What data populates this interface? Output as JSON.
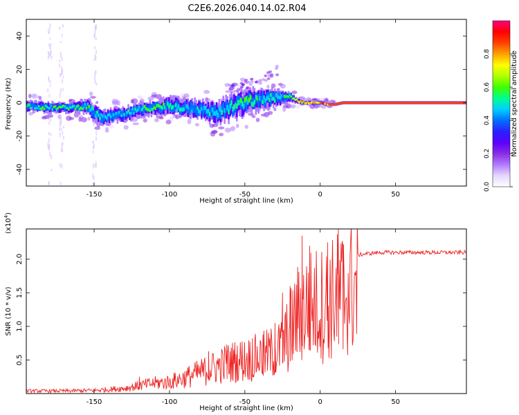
{
  "title": "C2E6.2026.040.14.02.R04",
  "colorbar": {
    "label": "Normalized spectral amplitude",
    "ticks": [
      0.0,
      0.2,
      0.4,
      0.6,
      0.8
    ],
    "tick_labels": [
      "0.0",
      "0.2",
      "0.4",
      "0.6",
      "0.8"
    ],
    "range": [
      0,
      1
    ],
    "stops": [
      "#ffffff",
      "#e6d6ff",
      "#b07cff",
      "#8a2be2",
      "#5a00ff",
      "#2a20ff",
      "#0070ff",
      "#00d0ff",
      "#00ff90",
      "#40ff00",
      "#b0ff00",
      "#ffff00",
      "#ffa000",
      "#ff4000",
      "#ff0000",
      "#ff0080"
    ]
  },
  "chart_data": [
    {
      "type": "heatmap",
      "title": "C2E6.2026.040.14.02.R04",
      "xlabel": "Height of straight line (km)",
      "ylabel": "Frequency (Hz)",
      "xlim": [
        -195,
        97
      ],
      "ylim": [
        -50,
        50
      ],
      "xticks": [
        -150,
        -100,
        -50,
        0,
        50
      ],
      "xtick_labels": [
        "-150",
        "-100",
        "-50",
        "0",
        "50"
      ],
      "yticks": [
        -40,
        -20,
        0,
        20,
        40
      ],
      "ytick_labels": [
        "-40",
        "-20",
        "0",
        "20",
        "40"
      ],
      "ridge": {
        "x": [
          -195,
          -180,
          -165,
          -155,
          -150,
          -145,
          -140,
          -130,
          -120,
          -110,
          -100,
          -90,
          -80,
          -70,
          -60,
          -50,
          -40,
          -30,
          -25,
          -20,
          -15,
          -10,
          -5,
          0,
          5,
          10,
          15,
          20,
          30,
          50,
          70,
          97
        ],
        "freq": [
          -2,
          -3,
          -3,
          -2,
          -6,
          -9,
          -8,
          -7,
          -4,
          -3,
          -2,
          -3,
          -4,
          -6,
          -3,
          0,
          2,
          3,
          3,
          4,
          1,
          0,
          0,
          0,
          -1,
          -1,
          0,
          0,
          0,
          0,
          0,
          0
        ],
        "spread": [
          3,
          3,
          3,
          4,
          5,
          4,
          4,
          4,
          4,
          4,
          5,
          5,
          5,
          6,
          7,
          7,
          6,
          5,
          4,
          3,
          1.5,
          1.2,
          1.2,
          1.2,
          1,
          1,
          1,
          1,
          1,
          1,
          1,
          1
        ],
        "peak_amplitude": [
          0.55,
          0.6,
          0.6,
          0.6,
          0.55,
          0.5,
          0.5,
          0.55,
          0.55,
          0.6,
          0.55,
          0.5,
          0.5,
          0.5,
          0.55,
          0.6,
          0.55,
          0.55,
          0.55,
          0.6,
          0.75,
          0.85,
          0.9,
          0.92,
          0.92,
          0.92,
          0.92,
          0.92,
          0.92,
          0.92,
          0.92,
          0.92
        ]
      },
      "wing_feature": {
        "x": [
          -60,
          -45,
          -35,
          -28
        ],
        "freq": [
          8,
          12,
          16,
          20
        ]
      }
    },
    {
      "type": "line",
      "title": "",
      "xlabel": "Height of straight line (km)",
      "ylabel": "SNR (10 * v/v)",
      "scale_label": "(x10",
      "scale_exp": "4",
      "scale_close": ")",
      "xlim": [
        -195,
        97
      ],
      "ylim": [
        0,
        2.45
      ],
      "xticks": [
        -150,
        -100,
        -50,
        0,
        50
      ],
      "xtick_labels": [
        "-150",
        "-100",
        "-50",
        "0",
        "50"
      ],
      "yticks": [
        0.5,
        1.0,
        1.5,
        2.0
      ],
      "ytick_labels": [
        "0.5",
        "1.0",
        "1.5",
        "2.0"
      ],
      "color": "#ee2222",
      "series": [
        {
          "name": "SNR",
          "x": [
            -195,
            -170,
            -150,
            -130,
            -120,
            -110,
            -100,
            -90,
            -80,
            -70,
            -60,
            -50,
            -40,
            -30,
            -25,
            -20,
            -15,
            -10,
            -5,
            0,
            5,
            10,
            15,
            20,
            25,
            30,
            40,
            50,
            60,
            70,
            80,
            97
          ],
          "envelope": [
            0.05,
            0.05,
            0.06,
            0.1,
            0.15,
            0.2,
            0.22,
            0.3,
            0.4,
            0.5,
            0.6,
            0.65,
            0.7,
            0.8,
            0.9,
            1.2,
            1.5,
            1.65,
            1.7,
            1.7,
            1.75,
            1.85,
            1.95,
            2.02,
            2.06,
            2.08,
            2.1,
            2.1,
            2.1,
            2.1,
            2.1,
            2.1
          ],
          "spikes": [
            {
              "x": -120,
              "value": 0.25
            },
            {
              "x": -74,
              "value": 0.63
            },
            {
              "x": -62,
              "value": 0.73
            },
            {
              "x": -45,
              "value": 0.82
            },
            {
              "x": -38,
              "value": 0.88
            },
            {
              "x": -30,
              "value": 1.05
            },
            {
              "x": -25,
              "value": 1.5
            },
            {
              "x": -20,
              "value": 1.6
            },
            {
              "x": -12,
              "value": 2.35
            },
            {
              "x": -7,
              "value": 2.2
            },
            {
              "x": 5,
              "value": 2.25
            },
            {
              "x": 12,
              "value": 2.45
            },
            {
              "x": 15,
              "value": 2.2
            }
          ]
        }
      ]
    }
  ]
}
